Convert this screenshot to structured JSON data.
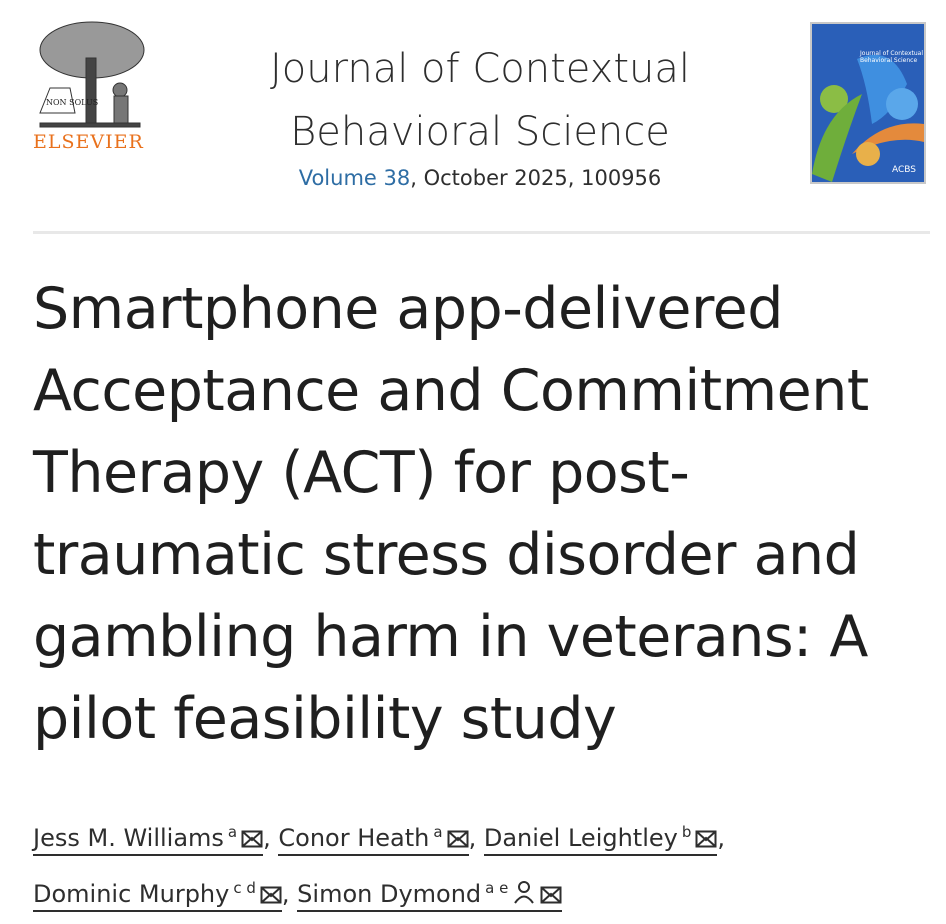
{
  "publisher": {
    "name": "ELSEVIER",
    "logo_motto": "NON SOLUS",
    "color": "#e9711c"
  },
  "journal": {
    "title_line1": "Journal of Contextual",
    "title_line2": "Behavioral Science",
    "volume_link": "Volume 38",
    "issue_rest": ", October 2025, 100956",
    "cover_text": "Journal of Contextual Behavioral Science",
    "cover_badge": "ACBS"
  },
  "article": {
    "title": "Smartphone app-delivered Acceptance and Commitment Therapy (ACT) for post-traumatic stress disorder and gambling harm in veterans: A pilot feasibility study"
  },
  "authors": [
    {
      "name": "Jess M. Williams",
      "affil": "a",
      "icons": [
        "email-icon"
      ],
      "sep": ","
    },
    {
      "name": "Conor Heath",
      "affil": "a",
      "icons": [
        "email-icon"
      ],
      "sep": ","
    },
    {
      "name": "Daniel Leightley",
      "affil": "b",
      "icons": [
        "email-icon"
      ],
      "sep": ","
    },
    {
      "name": "Dominic Murphy",
      "affil": "c d",
      "icons": [
        "email-icon"
      ],
      "sep": ","
    },
    {
      "name": "Simon Dymond",
      "affil": "a e",
      "icons": [
        "person-icon",
        "email-icon"
      ],
      "sep": ""
    }
  ]
}
